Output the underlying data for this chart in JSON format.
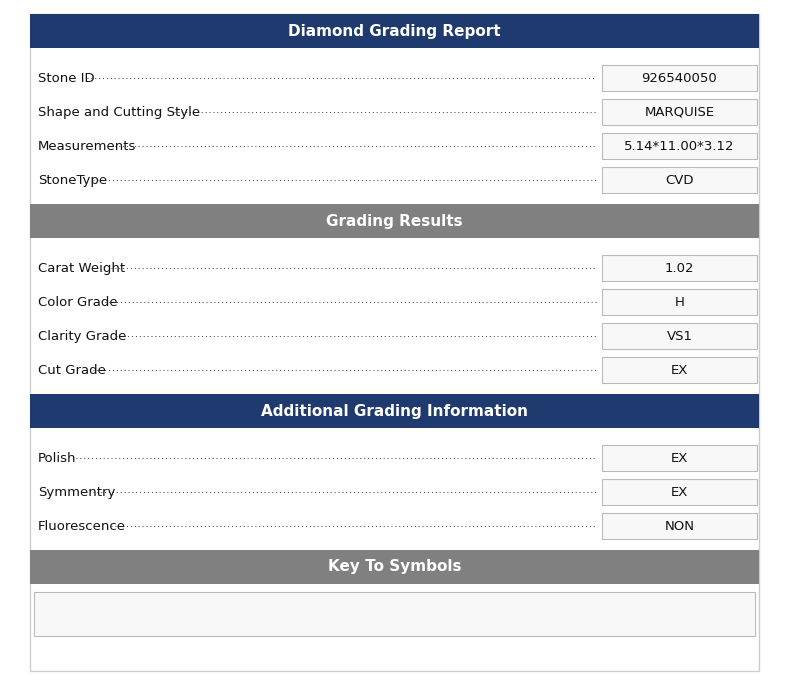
{
  "header_bg_dark": "#1e3a6e",
  "header_bg_medium": "#808080",
  "header_text_color": "#ffffff",
  "body_bg": "#ffffff",
  "text_color": "#111111",
  "box_border_color": "#bbbbbb",
  "box_bg_color": "#f8f8f8",
  "sections": [
    {
      "header": "Diamond Grading Report",
      "header_color": "#1e3a6e",
      "rows": [
        {
          "label": "Stone ID",
          "value": "926540050"
        },
        {
          "label": "Shape and Cutting Style",
          "value": "MARQUISE"
        },
        {
          "label": "Measurements",
          "value": "5.14*11.00*3.12"
        },
        {
          "label": "StoneType",
          "value": "CVD"
        }
      ]
    },
    {
      "header": "Grading Results",
      "header_color": "#808080",
      "rows": [
        {
          "label": "Carat Weight",
          "value": "1.02"
        },
        {
          "label": "Color Grade",
          "value": "H"
        },
        {
          "label": "Clarity Grade",
          "value": "VS1"
        },
        {
          "label": "Cut Grade",
          "value": "EX"
        }
      ]
    },
    {
      "header": "Additional Grading Information",
      "header_color": "#1e3a6e",
      "rows": [
        {
          "label": "Polish",
          "value": "EX"
        },
        {
          "label": "Symmentry",
          "value": "EX"
        },
        {
          "label": "Fluorescence",
          "value": "NON"
        }
      ]
    },
    {
      "header": "Key To Symbols",
      "header_color": "#808080",
      "rows": []
    }
  ],
  "fig_width": 7.89,
  "fig_height": 6.85,
  "dpi": 100
}
